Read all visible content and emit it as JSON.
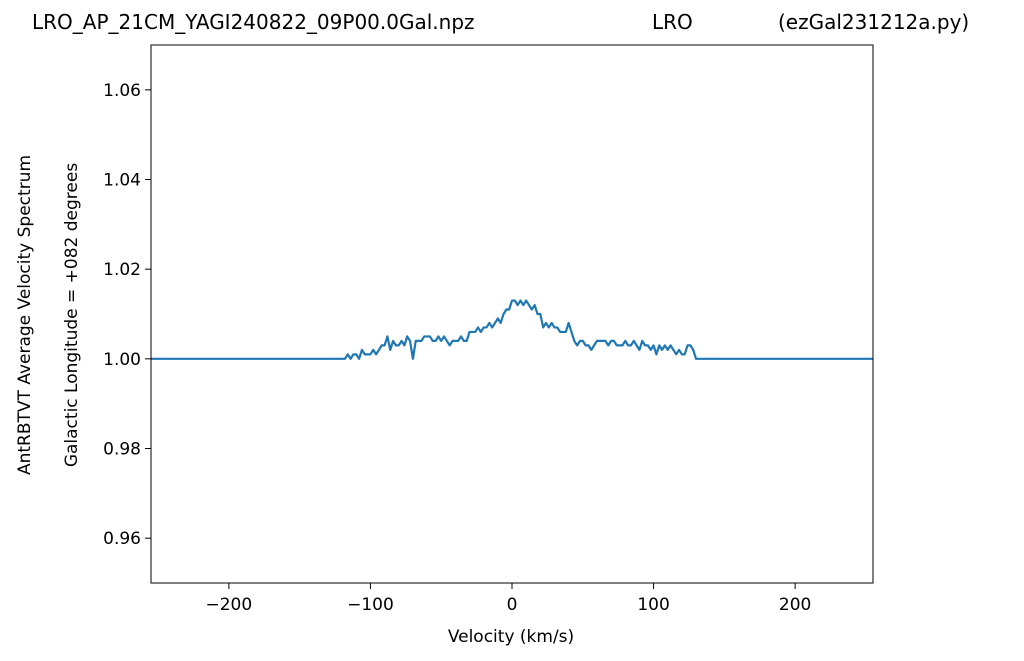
{
  "header": {
    "left": "LRO_AP_21CM_YAGI240822_09P00.0Gal.npz",
    "center": "LRO",
    "right": "(ezGal231212a.py)"
  },
  "chart_data": {
    "type": "line",
    "xlabel": "Velocity (km/s)",
    "ylabel_line1": "AntRBTVT Average Velocity Spectrum",
    "ylabel_line2": "Galactic Longitude = +082 degrees",
    "xlim": [
      -255,
      255
    ],
    "ylim": [
      0.95,
      1.07
    ],
    "xticks": [
      -200,
      -100,
      0,
      100,
      200
    ],
    "xtick_labels": [
      "−200",
      "−100",
      "0",
      "100",
      "200"
    ],
    "yticks": [
      0.96,
      0.98,
      1.0,
      1.02,
      1.04,
      1.06
    ],
    "ytick_labels": [
      "0.96",
      "0.98",
      "1.00",
      "1.02",
      "1.04",
      "1.06"
    ],
    "grid": false,
    "line_color": "#1f77b4",
    "series": [
      {
        "x": [
          -255,
          -118,
          -116,
          -114,
          -112,
          -110,
          -108,
          -106,
          -104,
          -102,
          -100,
          -98,
          -96,
          -94,
          -92,
          -90,
          -88,
          -86,
          -84,
          -82,
          -80,
          -78,
          -76,
          -74,
          -72,
          -70,
          -68,
          -66,
          -64,
          -62,
          -60,
          -58,
          -56,
          -54,
          -52,
          -50,
          -48,
          -46,
          -44,
          -42,
          -40,
          -38,
          -36,
          -34,
          -32,
          -30,
          -28,
          -26,
          -24,
          -22,
          -20,
          -18,
          -16,
          -14,
          -12,
          -10,
          -8,
          -6,
          -4,
          -2,
          0,
          2,
          4,
          6,
          8,
          10,
          12,
          14,
          16,
          18,
          20,
          22,
          24,
          26,
          28,
          30,
          32,
          34,
          36,
          38,
          40,
          42,
          44,
          46,
          48,
          50,
          52,
          54,
          56,
          58,
          60,
          62,
          64,
          66,
          68,
          70,
          72,
          74,
          76,
          78,
          80,
          82,
          84,
          86,
          88,
          90,
          92,
          94,
          96,
          98,
          100,
          102,
          104,
          106,
          108,
          110,
          112,
          114,
          116,
          118,
          120,
          122,
          124,
          126,
          128,
          130,
          255
        ],
        "y": [
          1.0,
          1.0,
          1.001,
          1.0,
          1.001,
          1.001,
          1.0,
          1.002,
          1.001,
          1.001,
          1.001,
          1.002,
          1.001,
          1.002,
          1.003,
          1.003,
          1.005,
          1.002,
          1.004,
          1.003,
          1.003,
          1.004,
          1.003,
          1.005,
          1.004,
          1.0,
          1.004,
          1.004,
          1.004,
          1.005,
          1.005,
          1.005,
          1.004,
          1.004,
          1.005,
          1.004,
          1.005,
          1.004,
          1.003,
          1.004,
          1.004,
          1.004,
          1.005,
          1.004,
          1.004,
          1.006,
          1.006,
          1.006,
          1.007,
          1.006,
          1.007,
          1.007,
          1.008,
          1.007,
          1.008,
          1.009,
          1.008,
          1.01,
          1.011,
          1.011,
          1.013,
          1.013,
          1.012,
          1.013,
          1.012,
          1.013,
          1.012,
          1.011,
          1.012,
          1.01,
          1.01,
          1.007,
          1.008,
          1.007,
          1.008,
          1.007,
          1.007,
          1.006,
          1.006,
          1.006,
          1.008,
          1.006,
          1.004,
          1.003,
          1.004,
          1.004,
          1.003,
          1.003,
          1.002,
          1.003,
          1.004,
          1.004,
          1.004,
          1.004,
          1.003,
          1.004,
          1.004,
          1.003,
          1.003,
          1.003,
          1.004,
          1.003,
          1.003,
          1.004,
          1.003,
          1.002,
          1.004,
          1.003,
          1.003,
          1.002,
          1.003,
          1.001,
          1.003,
          1.002,
          1.003,
          1.002,
          1.003,
          1.002,
          1.001,
          1.002,
          1.001,
          1.001,
          1.003,
          1.003,
          1.002,
          1.0,
          1.0
        ]
      }
    ]
  }
}
